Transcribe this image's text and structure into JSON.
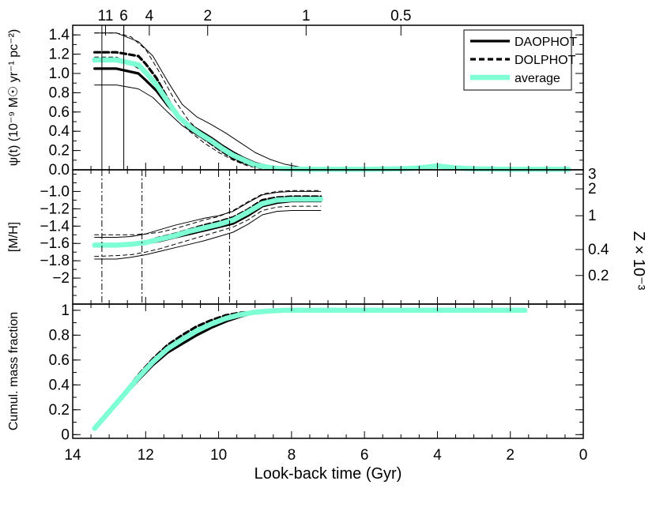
{
  "chart_data": {
    "type": "line",
    "xlabel": "Look-back time (Gyr)",
    "xlim": [
      14,
      0
    ],
    "x_ticks": [
      "14",
      "12",
      "10",
      "8",
      "6",
      "4",
      "2",
      "0"
    ],
    "top_axis": {
      "label_values": [
        "11",
        "6",
        "4",
        "2",
        "1",
        "0.5"
      ],
      "label_positions_gyr": [
        13.1,
        12.6,
        11.9,
        10.3,
        7.6,
        5.0
      ]
    },
    "legend": {
      "placement": "top-right",
      "entries": [
        {
          "name": "DAOPHOT",
          "style": "solid",
          "color": "#000000"
        },
        {
          "name": "DOLPHOT",
          "style": "dashed",
          "color": "#000000"
        },
        {
          "name": "average",
          "style": "solid-thick",
          "color": "#7fffd4"
        }
      ]
    },
    "panels": [
      {
        "id": "sfr",
        "ylabel": "ψ(t) (10⁻⁹ M☉ yr⁻¹ pc⁻²)",
        "ylim": [
          0,
          1.5
        ],
        "y_ticks": [
          "0.0",
          "0.2",
          "0.4",
          "0.6",
          "0.8",
          "1.0",
          "1.2",
          "1.4"
        ],
        "series": [
          {
            "name": "DAOPHOT",
            "x": [
              13.4,
              12.8,
              12.2,
              12.0,
              11.7,
              11.4,
              11.1,
              10.8,
              10.5,
              10.2,
              9.9,
              9.6,
              9.3,
              9.0,
              8.7,
              8.4,
              8.0,
              7.5,
              7.0,
              6.0,
              5.0,
              4.5,
              4.0,
              3.5,
              3.0,
              2.0,
              1.0,
              0.4
            ],
            "y": [
              1.05,
              1.05,
              1.0,
              0.93,
              0.82,
              0.67,
              0.55,
              0.47,
              0.4,
              0.33,
              0.25,
              0.18,
              0.12,
              0.07,
              0.04,
              0.02,
              0.01,
              0.005,
              0.005,
              0.005,
              0.01,
              0.02,
              0.04,
              0.02,
              0.01,
              0.005,
              0.005,
              0.005
            ]
          },
          {
            "name": "DOLPHOT",
            "x": [
              13.4,
              12.8,
              12.2,
              12.0,
              11.7,
              11.4,
              11.1,
              10.8,
              10.5,
              10.2,
              9.9,
              9.6,
              9.3,
              9.0,
              8.7,
              8.4,
              8.0,
              7.5,
              7.0,
              6.0,
              5.0,
              4.5,
              4.0,
              3.5,
              3.0,
              2.0,
              1.0,
              0.4
            ],
            "y": [
              1.22,
              1.22,
              1.18,
              1.1,
              0.95,
              0.74,
              0.55,
              0.43,
              0.35,
              0.27,
              0.19,
              0.12,
              0.07,
              0.04,
              0.02,
              0.01,
              0.005,
              0.005,
              0.005,
              0.005,
              0.01,
              0.02,
              0.04,
              0.02,
              0.01,
              0.005,
              0.005,
              0.005
            ]
          },
          {
            "name": "average",
            "x": [
              13.4,
              12.8,
              12.2,
              12.0,
              11.7,
              11.4,
              11.1,
              10.8,
              10.5,
              10.2,
              9.9,
              9.6,
              9.3,
              9.0,
              8.7,
              8.4,
              8.0,
              7.5,
              7.0,
              6.0,
              5.0,
              4.5,
              4.0,
              3.5,
              3.0,
              2.0,
              1.0,
              0.4
            ],
            "y": [
              1.14,
              1.14,
              1.09,
              1.01,
              0.88,
              0.71,
              0.55,
              0.45,
              0.37,
              0.3,
              0.22,
              0.15,
              0.1,
              0.05,
              0.03,
              0.015,
              0.008,
              0.005,
              0.005,
              0.005,
              0.01,
              0.02,
              0.04,
              0.02,
              0.01,
              0.005,
              0.005,
              0.005
            ]
          },
          {
            "name": "DAOPHOT upper",
            "x": [
              13.4,
              12.8,
              12.2,
              11.8,
              11.4,
              11.0,
              10.6,
              10.2,
              9.8,
              9.4,
              9.0,
              8.6,
              8.2,
              7.8,
              7.4
            ],
            "y": [
              1.42,
              1.42,
              1.33,
              1.18,
              0.92,
              0.68,
              0.55,
              0.47,
              0.38,
              0.28,
              0.18,
              0.11,
              0.06,
              0.03,
              0.01
            ]
          },
          {
            "name": "DAOPHOT lower",
            "x": [
              13.4,
              12.8,
              12.2,
              11.8,
              11.4,
              11.0,
              10.6,
              10.2,
              9.8,
              9.4,
              9.0,
              8.6,
              8.2
            ],
            "y": [
              0.88,
              0.88,
              0.84,
              0.75,
              0.6,
              0.46,
              0.36,
              0.27,
              0.17,
              0.09,
              0.04,
              0.015,
              0.005
            ]
          },
          {
            "name": "DOLPHOT upper",
            "x": [
              13.4,
              12.8,
              12.4,
              12.0,
              11.6,
              11.2,
              10.8,
              10.4,
              10.0,
              9.6,
              9.2,
              8.8,
              8.4
            ],
            "y": [
              1.42,
              1.42,
              1.38,
              1.25,
              1.0,
              0.72,
              0.5,
              0.36,
              0.26,
              0.17,
              0.1,
              0.05,
              0.02
            ]
          },
          {
            "name": "DOLPHOT lower",
            "x": [
              13.4,
              12.8,
              12.4,
              12.0,
              11.6,
              11.2,
              10.8,
              10.4,
              10.0,
              9.6,
              9.2,
              8.8
            ],
            "y": [
              1.17,
              1.17,
              1.1,
              1.0,
              0.82,
              0.58,
              0.4,
              0.28,
              0.18,
              0.1,
              0.04,
              0.01
            ]
          }
        ]
      },
      {
        "id": "metallicity",
        "ylabel": "[M/H]",
        "ylim": [
          -2.3,
          -0.75
        ],
        "y_ticks": [
          "−1.0",
          "−1.2",
          "−1.4",
          "−1.6",
          "−1.8",
          "−2"
        ],
        "right_ylabel": "Z × 10⁻³",
        "right_ticks": [
          "3",
          "2",
          "1",
          "0.4",
          "0.2"
        ],
        "right_tick_mh": [
          -0.8,
          -0.97,
          -1.28,
          -1.67,
          -1.97
        ],
        "vertical_lines_gyr": [
          13.2,
          12.1,
          9.7
        ],
        "series": [
          {
            "name": "DAOPHOT",
            "x": [
              13.4,
              12.8,
              12.4,
              12.0,
              11.6,
              11.2,
              10.8,
              10.4,
              10.0,
              9.6,
              9.2,
              8.8,
              8.4,
              8.0,
              7.6,
              7.2
            ],
            "y": [
              -1.63,
              -1.63,
              -1.62,
              -1.6,
              -1.57,
              -1.53,
              -1.49,
              -1.45,
              -1.41,
              -1.37,
              -1.28,
              -1.17,
              -1.13,
              -1.11,
              -1.11,
              -1.11
            ]
          },
          {
            "name": "DOLPHOT",
            "x": [
              13.4,
              12.8,
              12.4,
              12.0,
              11.6,
              11.2,
              10.8,
              10.4,
              10.0,
              9.6,
              9.2,
              8.8,
              8.4,
              8.0,
              7.6,
              7.2
            ],
            "y": [
              -1.62,
              -1.62,
              -1.61,
              -1.58,
              -1.53,
              -1.49,
              -1.44,
              -1.39,
              -1.35,
              -1.3,
              -1.21,
              -1.1,
              -1.07,
              -1.06,
              -1.06,
              -1.06
            ]
          },
          {
            "name": "average",
            "x": [
              13.4,
              12.8,
              12.4,
              12.0,
              11.6,
              11.2,
              10.8,
              10.4,
              10.0,
              9.6,
              9.2,
              8.8,
              8.4,
              8.0,
              7.6,
              7.2
            ],
            "y": [
              -1.62,
              -1.62,
              -1.61,
              -1.59,
              -1.55,
              -1.51,
              -1.46,
              -1.42,
              -1.38,
              -1.33,
              -1.24,
              -1.14,
              -1.1,
              -1.09,
              -1.09,
              -1.09
            ]
          },
          {
            "name": "upper thin",
            "x": [
              13.4,
              12.8,
              12.4,
              12.0,
              11.6,
              11.2,
              10.8,
              10.4,
              10.0,
              9.6,
              9.2,
              8.8,
              8.4,
              8.0,
              7.6,
              7.2
            ],
            "y": [
              -1.53,
              -1.53,
              -1.52,
              -1.49,
              -1.44,
              -1.39,
              -1.35,
              -1.31,
              -1.28,
              -1.23,
              -1.13,
              -1.04,
              -1.01,
              -1.0,
              -1.0,
              -1.0
            ]
          },
          {
            "name": "lower thin",
            "x": [
              13.4,
              12.8,
              12.4,
              12.0,
              11.6,
              11.2,
              10.8,
              10.4,
              10.0,
              9.6,
              9.2,
              8.8,
              8.4,
              8.0,
              7.6,
              7.2
            ],
            "y": [
              -1.78,
              -1.78,
              -1.76,
              -1.73,
              -1.69,
              -1.65,
              -1.61,
              -1.57,
              -1.52,
              -1.47,
              -1.38,
              -1.27,
              -1.23,
              -1.22,
              -1.22,
              -1.22
            ]
          },
          {
            "name": "upper dashed",
            "x": [
              13.4,
              12.8,
              12.4,
              12.0,
              11.6,
              11.2,
              10.8,
              10.4,
              10.0,
              9.6,
              9.2,
              8.8,
              8.4,
              8.0,
              7.6,
              7.2
            ],
            "y": [
              -1.5,
              -1.5,
              -1.5,
              -1.49,
              -1.47,
              -1.43,
              -1.38,
              -1.33,
              -1.29,
              -1.22,
              -1.12,
              -1.03,
              -1.0,
              -0.99,
              -0.99,
              -0.99
            ]
          },
          {
            "name": "lower dashed",
            "x": [
              13.4,
              12.8,
              12.4,
              12.0,
              11.6,
              11.2,
              10.8,
              10.4,
              10.0,
              9.6,
              9.2,
              8.8,
              8.4,
              8.0,
              7.6,
              7.2
            ],
            "y": [
              -1.75,
              -1.74,
              -1.73,
              -1.7,
              -1.66,
              -1.61,
              -1.56,
              -1.51,
              -1.46,
              -1.41,
              -1.33,
              -1.22,
              -1.18,
              -1.17,
              -1.17,
              -1.17
            ]
          }
        ]
      },
      {
        "id": "cumulative",
        "ylabel": "Cumul. mass fraction",
        "ylim": [
          -0.03,
          1.05
        ],
        "y_ticks": [
          "0",
          "0.2",
          "0.4",
          "0.6",
          "0.8",
          "1"
        ],
        "series": [
          {
            "name": "DAOPHOT",
            "x": [
              13.4,
              13.0,
              12.6,
              12.2,
              11.8,
              11.4,
              11.0,
              10.6,
              10.2,
              9.8,
              9.4,
              9.0,
              8.6,
              8.2,
              7.8,
              7.0,
              5.0,
              3.0,
              1.6
            ],
            "y": [
              0.05,
              0.18,
              0.31,
              0.44,
              0.56,
              0.66,
              0.73,
              0.8,
              0.86,
              0.91,
              0.95,
              0.98,
              0.99,
              1.0,
              1.0,
              1.0,
              1.0,
              1.0,
              1.0
            ]
          },
          {
            "name": "DOLPHOT",
            "x": [
              13.4,
              13.0,
              12.6,
              12.2,
              11.8,
              11.4,
              11.0,
              10.6,
              10.2,
              9.8,
              9.4,
              9.0,
              8.6,
              8.2,
              7.8,
              7.0,
              5.0,
              3.0,
              1.6
            ],
            "y": [
              0.05,
              0.19,
              0.33,
              0.48,
              0.61,
              0.72,
              0.8,
              0.87,
              0.92,
              0.96,
              0.98,
              0.99,
              1.0,
              1.0,
              1.0,
              1.0,
              1.0,
              1.0,
              1.0
            ]
          },
          {
            "name": "average",
            "x": [
              13.4,
              13.0,
              12.6,
              12.2,
              11.8,
              11.4,
              11.0,
              10.6,
              10.2,
              9.8,
              9.4,
              9.0,
              8.6,
              8.2,
              7.8,
              7.0,
              5.0,
              3.0,
              1.6
            ],
            "y": [
              0.05,
              0.185,
              0.32,
              0.46,
              0.585,
              0.69,
              0.765,
              0.835,
              0.89,
              0.935,
              0.965,
              0.985,
              0.995,
              1.0,
              1.0,
              1.0,
              1.0,
              1.0,
              1.0
            ]
          }
        ]
      }
    ]
  }
}
